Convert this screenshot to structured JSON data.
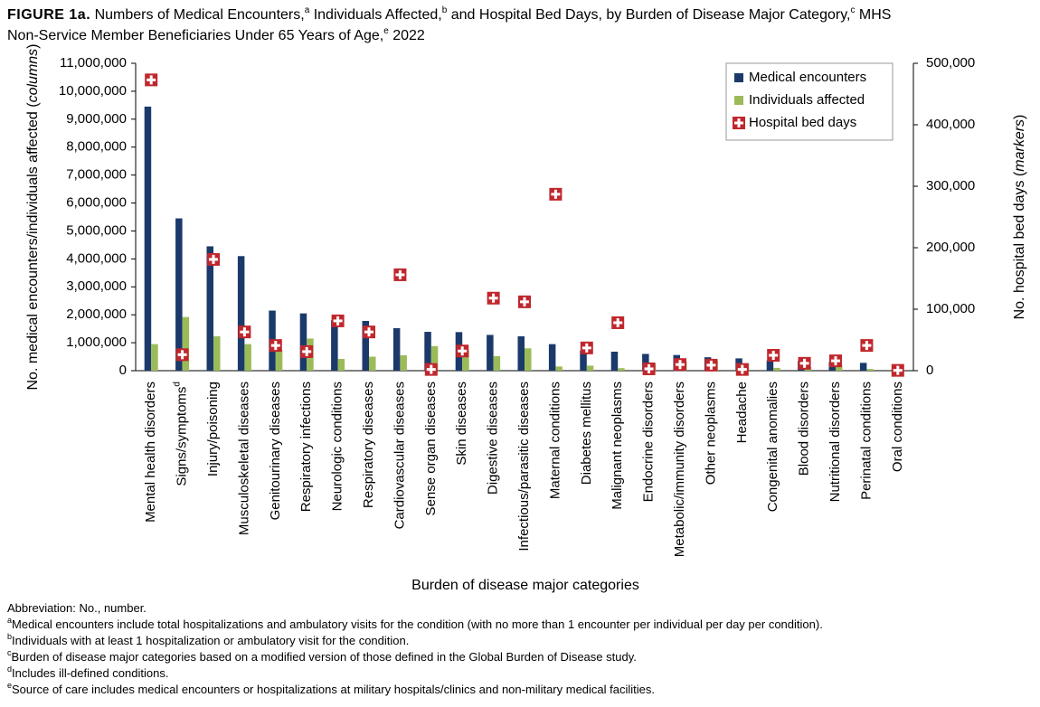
{
  "chart_data": {
    "type": "bar",
    "figure_label": "FIGURE 1a.",
    "title_lines": [
      [
        "Numbers of Medical Encounters,",
        "a",
        " Individuals Affected,",
        "b",
        " and Hospital Bed Days, by Burden of Disease Major Category,",
        "c",
        " MHS"
      ],
      [
        "Non-Service Member Beneficiaries Under 65 Years of Age,",
        "e",
        " 2022"
      ]
    ],
    "x_label": "Burden of disease major categories",
    "y_label": [
      "No. medical encounters/individuals affected (",
      "columns",
      ")"
    ],
    "y2_label": [
      "No. hospital bed days (",
      "markers",
      ")"
    ],
    "categories": [
      "Mental health disorders",
      "Signs/symptoms",
      "Injury/poisoning",
      "Musculoskeletal diseases",
      "Genitourinary diseases",
      "Respiratory infections",
      "Neurologic conditions",
      "Respiratory diseases",
      "Cardiovascular diseases",
      "Sense organ diseases",
      "Skin diseases",
      "Digestive diseases",
      "Infectious/parasitic diseases",
      "Maternal conditions",
      "Diabetes mellitus",
      "Malignant neoplasms",
      "Endocrine disorders",
      "Metabolic/immunity disorders",
      "Other neoplasms",
      "Headache",
      "Congenital anomalies",
      "Blood disorders",
      "Nutritional disorders",
      "Perinatal conditions",
      "Oral conditions"
    ],
    "category_notes": {
      "1": "d"
    },
    "series": [
      {
        "name": "Medical encounters",
        "color": "#1b3a6b",
        "values": [
          9450000,
          5450000,
          4450000,
          4100000,
          2150000,
          2050000,
          1800000,
          1780000,
          1520000,
          1390000,
          1380000,
          1280000,
          1230000,
          950000,
          720000,
          680000,
          600000,
          560000,
          480000,
          440000,
          370000,
          350000,
          310000,
          280000,
          20000
        ]
      },
      {
        "name": "Individuals affected",
        "color": "#9bbb59",
        "values": [
          950000,
          1920000,
          1230000,
          950000,
          750000,
          1150000,
          420000,
          500000,
          550000,
          880000,
          730000,
          520000,
          800000,
          150000,
          180000,
          90000,
          250000,
          330000,
          380000,
          250000,
          100000,
          130000,
          190000,
          60000,
          15000
        ]
      },
      {
        "name": "Hospital bed days",
        "color": "#c0272d",
        "type": "scatter",
        "axis": "y2",
        "values": [
          473000,
          26000,
          181000,
          63000,
          41000,
          31000,
          81000,
          63000,
          156000,
          2000,
          32000,
          118000,
          112000,
          287000,
          37000,
          78000,
          3000,
          10000,
          9000,
          2000,
          25000,
          12000,
          16000,
          41000,
          500
        ]
      }
    ],
    "ylim": [
      0,
      11000000
    ],
    "yticks": [
      0,
      {
        "value": 1000000,
        "label": "1,000,000"
      },
      {
        "value": 2000000,
        "label": "2,000,000"
      },
      {
        "value": 3000000,
        "label": "3,000,000"
      },
      {
        "value": 4000000,
        "label": "4,000,000"
      },
      {
        "value": 5000000,
        "label": "5,000,000"
      },
      {
        "value": 6000000,
        "label": "6,000,000"
      },
      {
        "value": 7000000,
        "label": "7,000,000"
      },
      {
        "value": 8000000,
        "label": "8,000,000"
      },
      {
        "value": 9000000,
        "label": "9,000,000"
      },
      {
        "value": 10000000,
        "label": "10,000,000"
      },
      {
        "value": 11000000,
        "label": "11,000,000"
      }
    ],
    "y2lim": [
      0,
      500000
    ],
    "y2ticks": [
      0,
      {
        "value": 100000,
        "label": "100,000"
      },
      {
        "value": 200000,
        "label": "200,000"
      },
      {
        "value": 300000,
        "label": "300,000"
      },
      {
        "value": 400000,
        "label": "400,000"
      },
      {
        "value": 500000,
        "label": "500,000"
      }
    ],
    "legend": "upper right",
    "grid": false,
    "footnotes": [
      {
        "mark": "",
        "text": "Abbreviation: No., number."
      },
      {
        "mark": "a",
        "text": "Medical encounters include total hospitalizations and ambulatory visits for the condition (with no more than 1 encounter per individual per day per condition)."
      },
      {
        "mark": "b",
        "text": "Individuals with at least 1 hospitalization or ambulatory visit for the condition."
      },
      {
        "mark": "c",
        "text": "Burden of disease major categories based on a modified version of those defined in the Global Burden of Disease study."
      },
      {
        "mark": "d",
        "text": "Includes ill-defined conditions."
      },
      {
        "mark": "e",
        "text": "Source of care includes medical encounters or hospitalizations at military hospitals/clinics and non-military medical facilities."
      }
    ]
  }
}
